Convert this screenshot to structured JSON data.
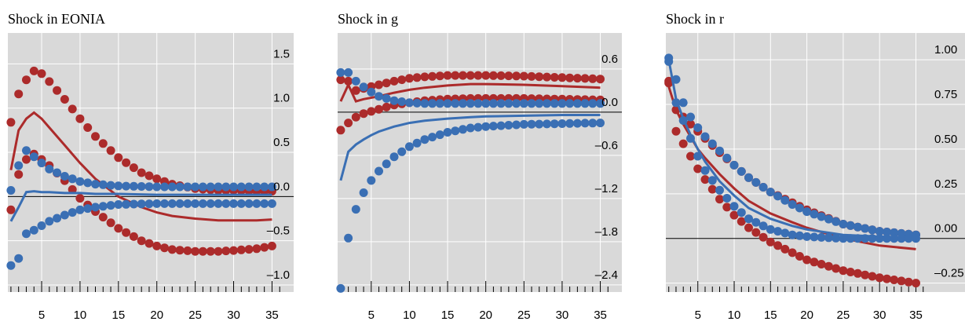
{
  "colors": {
    "blue": "#3a6fb4",
    "red": "#ac2b2b",
    "panel_bg": "#d9d9d9",
    "grid": "#ffffff"
  },
  "chart_data": [
    {
      "type": "line",
      "title": "Shock in EONIA",
      "x_ticks": [
        5,
        10,
        15,
        20,
        25,
        30,
        35
      ],
      "y_ticks": [
        1.5,
        1.0,
        0.5,
        0.0,
        -0.5,
        -1.0
      ],
      "y_tick_labels": [
        "1.5",
        "1.0",
        "0.5",
        "0.0",
        "–0.5",
        "–1.0"
      ],
      "ylim": [
        -1.08,
        1.85
      ],
      "xlim": [
        0.6,
        37
      ],
      "series": [
        {
          "color": "red",
          "style": "line",
          "x": [
            1,
            2,
            3,
            4,
            5,
            6,
            8,
            10,
            12,
            15,
            18,
            20,
            22,
            25,
            28,
            30,
            33,
            35
          ],
          "y": [
            0.3,
            0.75,
            0.88,
            0.95,
            0.88,
            0.78,
            0.58,
            0.38,
            0.2,
            0.0,
            -0.12,
            -0.18,
            -0.22,
            -0.25,
            -0.27,
            -0.27,
            -0.27,
            -0.26
          ]
        },
        {
          "color": "red",
          "style": "dots",
          "x": [
            1,
            2,
            3,
            4,
            5,
            6,
            8,
            10,
            12,
            15,
            18,
            20,
            22,
            25,
            28,
            30,
            33,
            35
          ],
          "y": [
            0.84,
            1.16,
            1.32,
            1.42,
            1.39,
            1.3,
            1.1,
            0.88,
            0.68,
            0.44,
            0.27,
            0.2,
            0.14,
            0.09,
            0.07,
            0.07,
            0.06,
            0.06
          ]
        },
        {
          "color": "red",
          "style": "dots",
          "x": [
            1,
            2,
            3,
            4,
            5,
            6,
            8,
            10,
            12,
            15,
            18,
            20,
            22,
            25,
            28,
            30,
            33,
            35
          ],
          "y": [
            -0.15,
            0.25,
            0.42,
            0.48,
            0.42,
            0.35,
            0.18,
            -0.02,
            -0.17,
            -0.36,
            -0.5,
            -0.56,
            -0.6,
            -0.62,
            -0.62,
            -0.61,
            -0.59,
            -0.56
          ]
        },
        {
          "color": "blue",
          "style": "line",
          "x": [
            1,
            2,
            3,
            4,
            5,
            6,
            8,
            10,
            12,
            15,
            20,
            25,
            30,
            35
          ],
          "y": [
            -0.28,
            -0.12,
            0.05,
            0.06,
            0.05,
            0.05,
            0.04,
            0.04,
            0.03,
            0.03,
            0.02,
            0.02,
            0.02,
            0.02
          ]
        },
        {
          "color": "blue",
          "style": "dots",
          "x": [
            1,
            2,
            3,
            4,
            5,
            6,
            8,
            10,
            12,
            15,
            20,
            25,
            30,
            35
          ],
          "y": [
            0.07,
            0.35,
            0.52,
            0.45,
            0.38,
            0.31,
            0.23,
            0.17,
            0.14,
            0.12,
            0.11,
            0.11,
            0.11,
            0.11
          ]
        },
        {
          "color": "blue",
          "style": "dots",
          "x": [
            1,
            2,
            3,
            4,
            5,
            6,
            8,
            10,
            12,
            15,
            20,
            25,
            30,
            35
          ],
          "y": [
            -0.78,
            -0.7,
            -0.42,
            -0.38,
            -0.33,
            -0.28,
            -0.21,
            -0.15,
            -0.12,
            -0.09,
            -0.08,
            -0.08,
            -0.08,
            -0.08
          ]
        }
      ]
    },
    {
      "type": "line",
      "title": "Shock in g",
      "x_ticks": [
        5,
        10,
        15,
        20,
        25,
        30,
        35
      ],
      "y_ticks": [
        0.6,
        0.0,
        -0.6,
        -1.2,
        -1.8,
        -2.4
      ],
      "y_tick_labels": [
        "0.6",
        "0.0",
        "–0.6",
        "–1.2",
        "–1.8",
        "–2.4"
      ],
      "ylim": [
        -2.5,
        1.1
      ],
      "xlim": [
        0.6,
        37
      ],
      "series": [
        {
          "color": "red",
          "style": "line",
          "x": [
            1,
            2,
            3,
            4,
            6,
            8,
            10,
            12,
            15,
            18,
            20,
            25,
            30,
            35
          ],
          "y": [
            0.15,
            0.38,
            0.15,
            0.18,
            0.22,
            0.27,
            0.31,
            0.34,
            0.37,
            0.39,
            0.39,
            0.38,
            0.36,
            0.34
          ]
        },
        {
          "color": "red",
          "style": "dots",
          "x": [
            1,
            2,
            3,
            4,
            6,
            8,
            10,
            12,
            15,
            18,
            20,
            25,
            30,
            35
          ],
          "y": [
            0.45,
            0.43,
            0.3,
            0.33,
            0.38,
            0.43,
            0.47,
            0.49,
            0.51,
            0.51,
            0.51,
            0.5,
            0.48,
            0.46
          ]
        },
        {
          "color": "red",
          "style": "dots",
          "x": [
            1,
            2,
            3,
            4,
            6,
            8,
            10,
            12,
            15,
            18,
            20,
            25,
            30,
            35
          ],
          "y": [
            -0.25,
            -0.15,
            -0.07,
            -0.02,
            0.04,
            0.1,
            0.13,
            0.16,
            0.18,
            0.19,
            0.19,
            0.19,
            0.18,
            0.17
          ]
        },
        {
          "color": "blue",
          "style": "line",
          "x": [
            1,
            2,
            3,
            4,
            5,
            6,
            8,
            10,
            12,
            15,
            18,
            20,
            25,
            30,
            35
          ],
          "y": [
            -0.95,
            -0.55,
            -0.45,
            -0.38,
            -0.32,
            -0.27,
            -0.2,
            -0.15,
            -0.12,
            -0.09,
            -0.07,
            -0.06,
            -0.05,
            -0.04,
            -0.04
          ]
        },
        {
          "color": "blue",
          "style": "dots",
          "x": [
            1,
            2,
            3,
            4,
            5,
            6,
            8,
            10,
            12,
            15,
            18,
            20,
            25,
            30,
            35
          ],
          "y": [
            0.55,
            0.55,
            0.43,
            0.35,
            0.28,
            0.22,
            0.16,
            0.13,
            0.12,
            0.12,
            0.12,
            0.12,
            0.12,
            0.12,
            0.12
          ]
        },
        {
          "color": "blue",
          "style": "dots",
          "x": [
            1,
            2,
            3,
            4,
            5,
            6,
            8,
            10,
            12,
            15,
            18,
            20,
            25,
            30,
            35
          ],
          "y": [
            -2.45,
            -1.75,
            -1.35,
            -1.12,
            -0.95,
            -0.82,
            -0.62,
            -0.48,
            -0.38,
            -0.28,
            -0.22,
            -0.2,
            -0.17,
            -0.16,
            -0.15
          ]
        }
      ]
    },
    {
      "type": "line",
      "title": "Shock in r",
      "x_ticks": [
        5,
        10,
        15,
        20,
        25,
        30,
        35
      ],
      "y_ticks": [
        1.0,
        0.75,
        0.5,
        0.25,
        0.0,
        -0.25
      ],
      "y_tick_labels": [
        "1.00",
        "0.75",
        "0.50",
        "0.25",
        "0.00",
        "–0.25"
      ],
      "ylim": [
        -0.3,
        1.15
      ],
      "xlim": [
        0.6,
        37
      ],
      "series": [
        {
          "color": "red",
          "style": "line",
          "x": [
            1,
            2,
            3,
            4,
            5,
            6,
            8,
            10,
            12,
            15,
            18,
            20,
            25,
            30,
            35
          ],
          "y": [
            0.85,
            0.72,
            0.64,
            0.57,
            0.5,
            0.45,
            0.36,
            0.28,
            0.21,
            0.14,
            0.09,
            0.06,
            0.0,
            -0.04,
            -0.06
          ]
        },
        {
          "color": "red",
          "style": "dots",
          "x": [
            1,
            2,
            3,
            4,
            5,
            6,
            8,
            10,
            12,
            15,
            18,
            20,
            25,
            30,
            35
          ],
          "y": [
            0.87,
            0.72,
            0.68,
            0.64,
            0.6,
            0.56,
            0.48,
            0.41,
            0.34,
            0.26,
            0.2,
            0.16,
            0.08,
            0.04,
            0.02
          ]
        },
        {
          "color": "red",
          "style": "dots",
          "x": [
            1,
            2,
            3,
            4,
            5,
            6,
            8,
            10,
            12,
            15,
            18,
            20,
            25,
            30,
            35
          ],
          "y": [
            0.88,
            0.6,
            0.53,
            0.46,
            0.39,
            0.33,
            0.22,
            0.13,
            0.06,
            -0.02,
            -0.08,
            -0.12,
            -0.18,
            -0.22,
            -0.25
          ]
        },
        {
          "color": "blue",
          "style": "line",
          "x": [
            1,
            2,
            3,
            4,
            5,
            6,
            8,
            10,
            12,
            15,
            18,
            20,
            25,
            30,
            35
          ],
          "y": [
            1.0,
            0.78,
            0.67,
            0.58,
            0.5,
            0.43,
            0.32,
            0.24,
            0.17,
            0.11,
            0.07,
            0.05,
            0.02,
            0.01,
            0.0
          ]
        },
        {
          "color": "blue",
          "style": "dots",
          "x": [
            1,
            2,
            3,
            4,
            5,
            6,
            8,
            10,
            12,
            15,
            18,
            20,
            25,
            30,
            35
          ],
          "y": [
            1.01,
            0.89,
            0.76,
            0.68,
            0.62,
            0.57,
            0.49,
            0.41,
            0.34,
            0.26,
            0.19,
            0.15,
            0.08,
            0.04,
            0.02
          ]
        },
        {
          "color": "blue",
          "style": "dots",
          "x": [
            1,
            2,
            3,
            4,
            5,
            6,
            8,
            10,
            12,
            15,
            18,
            20,
            25,
            30,
            35
          ],
          "y": [
            0.99,
            0.76,
            0.66,
            0.56,
            0.46,
            0.38,
            0.27,
            0.18,
            0.11,
            0.05,
            0.02,
            0.01,
            0.0,
            0.0,
            0.0
          ]
        }
      ]
    }
  ]
}
